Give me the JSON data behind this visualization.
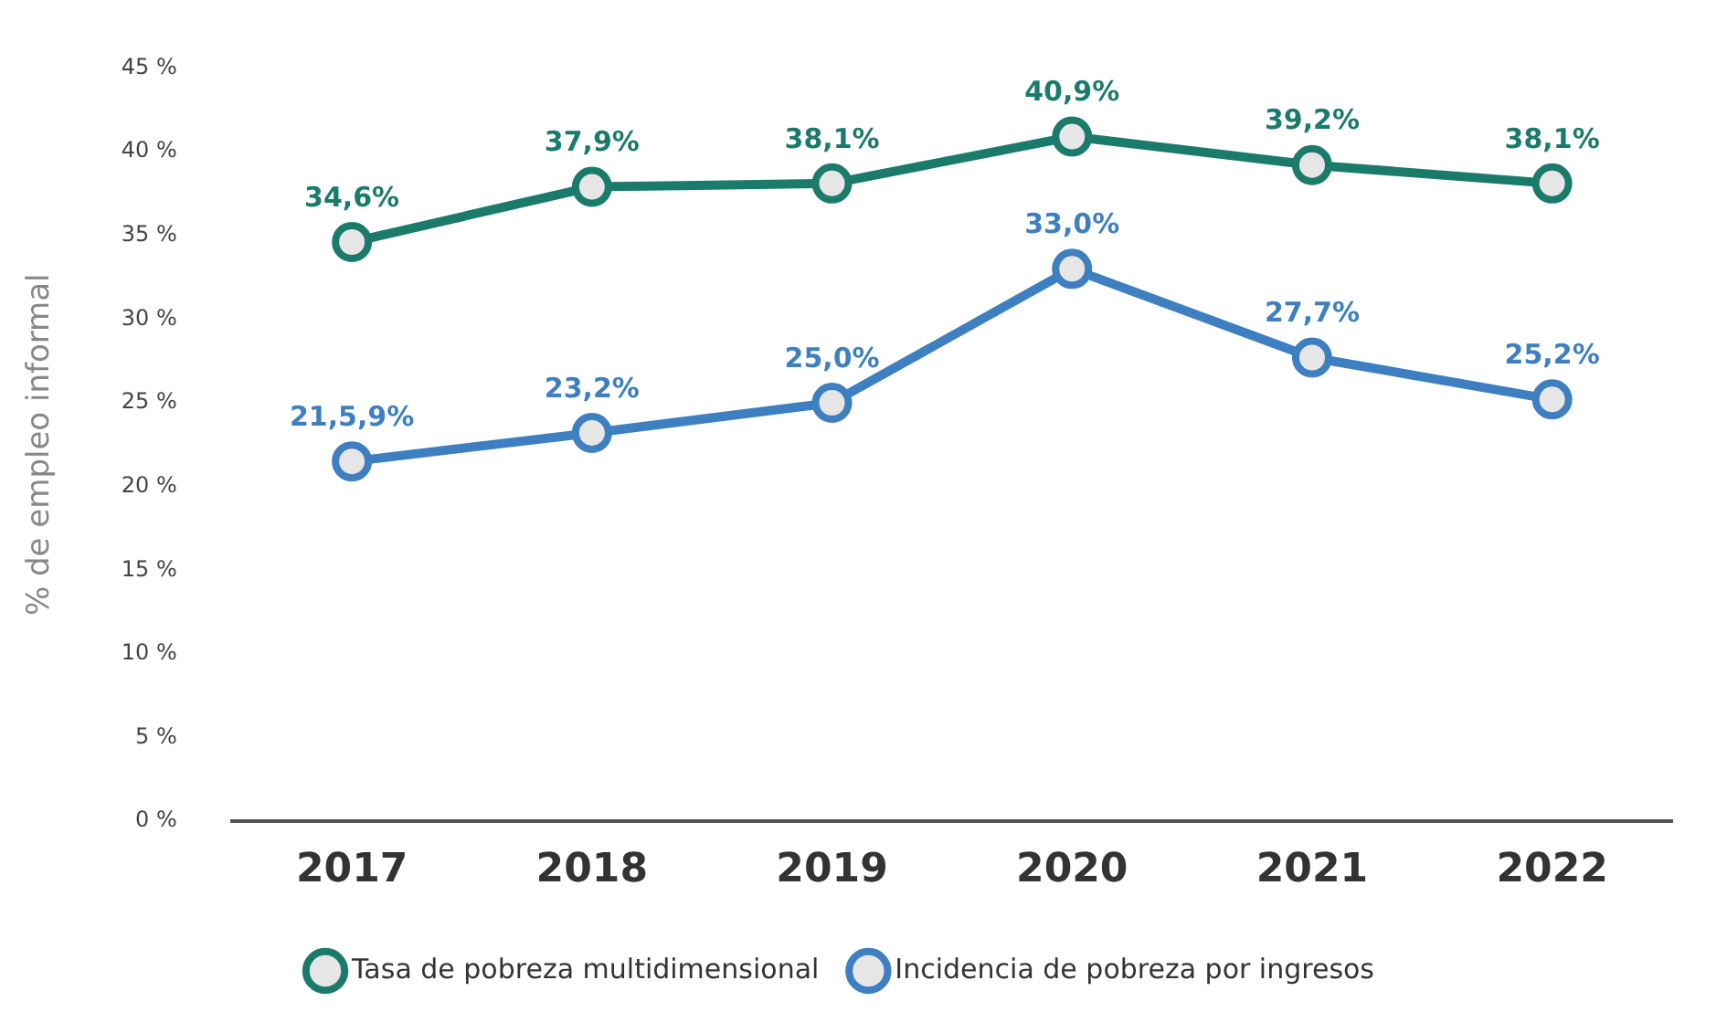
{
  "chart_data": {
    "type": "line",
    "ylabel": "% de empleo informal",
    "categories": [
      "2017",
      "2018",
      "2019",
      "2020",
      "2021",
      "2022"
    ],
    "series": [
      {
        "name": "Tasa de pobreza multidimensional",
        "color": "#1b7b6b",
        "values": [
          34.6,
          37.9,
          38.1,
          40.9,
          39.2,
          38.1
        ],
        "value_labels": [
          "34,6%",
          "37,9%",
          "38,1%",
          "40,9%",
          "39,2%",
          "38,1%"
        ]
      },
      {
        "name": "Incidencia de pobreza por ingresos",
        "color": "#3d7fc1",
        "values": [
          21.5,
          23.2,
          25.0,
          33.0,
          27.7,
          25.2
        ],
        "value_labels": [
          "21,5,9%",
          "23,2%",
          "25,0%",
          "33,0%",
          "27,7%",
          "25,2%"
        ]
      }
    ],
    "ylim": [
      0,
      45
    ],
    "yticks": [
      {
        "value": 0,
        "label": "0 %"
      },
      {
        "value": 5,
        "label": "5 %"
      },
      {
        "value": 10,
        "label": "10 %"
      },
      {
        "value": 15,
        "label": "15 %"
      },
      {
        "value": 20,
        "label": "20 %"
      },
      {
        "value": 25,
        "label": "25 %"
      },
      {
        "value": 30,
        "label": "30 %"
      },
      {
        "value": 35,
        "label": "35 %"
      },
      {
        "value": 40,
        "label": "40 %"
      },
      {
        "value": 45,
        "label": "45 %"
      }
    ],
    "grid": false,
    "legend": "bottom",
    "marker": "circle",
    "line_style": "solid"
  }
}
